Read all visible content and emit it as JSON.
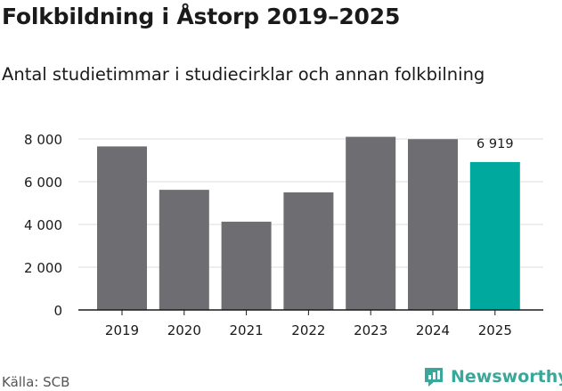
{
  "header": {
    "title": "Folkbildning i Åstorp 2019–2025",
    "subtitle": "Antal studietimmar i studiecirklar och annan folkbilning"
  },
  "footer": {
    "source": "Källa: SCB",
    "brand": "Newsworthy"
  },
  "colors": {
    "bar_default": "#6e6d72",
    "bar_highlight": "#00a99d",
    "gridline": "#dcdcdc",
    "axis": "#1a1a1a",
    "brand": "#3aa79b"
  },
  "chart_data": {
    "type": "bar",
    "categories": [
      "2019",
      "2020",
      "2021",
      "2022",
      "2023",
      "2024",
      "2025"
    ],
    "values": [
      7650,
      5620,
      4130,
      5500,
      8100,
      7990,
      6919
    ],
    "highlight_index": 6,
    "data_labels": [
      {
        "index": 6,
        "text": "6 919"
      }
    ],
    "yticks": [
      0,
      2000,
      4000,
      6000,
      8000
    ],
    "ytick_labels": [
      "0",
      "2 000",
      "4 000",
      "6 000",
      "8 000"
    ],
    "ylim": [
      0,
      8000
    ],
    "grid": true
  }
}
